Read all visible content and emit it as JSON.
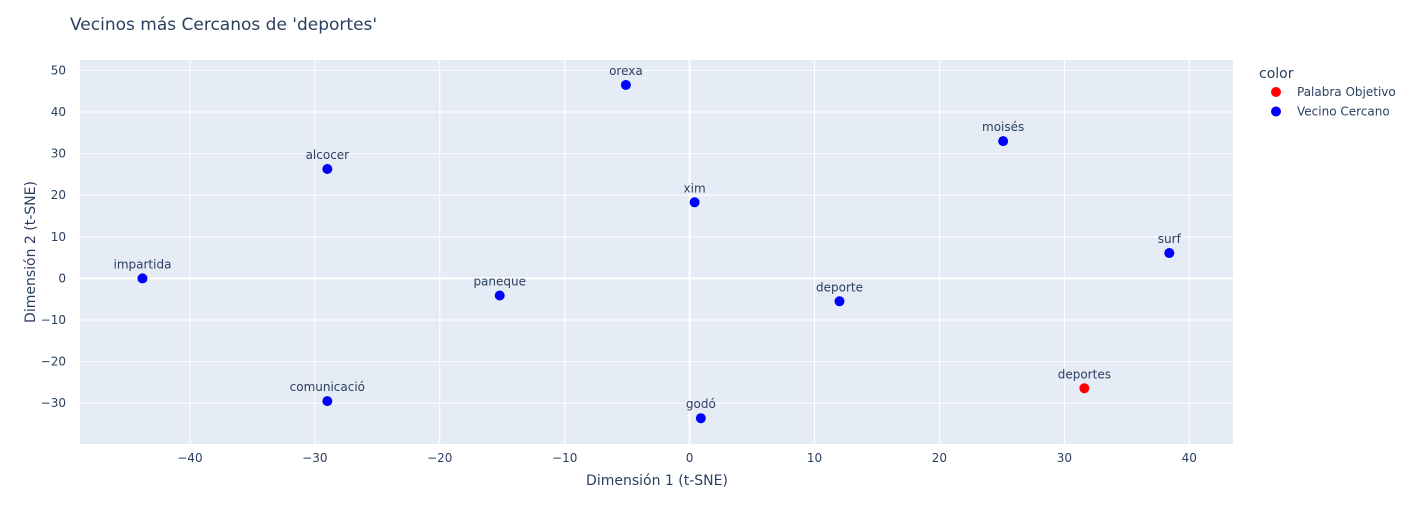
{
  "chart_data": {
    "type": "scatter",
    "title": "Vecinos más Cercanos de 'deportes'",
    "xlabel": "Dimensión 1 (t-SNE)",
    "ylabel": "Dimensión 2 (t-SNE)",
    "xlim": [
      -48.8,
      43.5
    ],
    "ylim": [
      -39.8,
      52.5
    ],
    "xticks": [
      -40,
      -30,
      -20,
      -10,
      0,
      10,
      20,
      30,
      40
    ],
    "yticks": [
      -30,
      -20,
      -10,
      0,
      10,
      20,
      30,
      40,
      50
    ],
    "tick_text": {
      "-40": "−40",
      "-30": "−30",
      "-20": "−20",
      "-10": "−10",
      "0": "0",
      "10": "10",
      "20": "20",
      "30": "30",
      "40": "40",
      "50": "50"
    },
    "grid": true,
    "legend": {
      "title": "color",
      "placement": "top-right",
      "entries": [
        {
          "label": "Palabra Objetivo",
          "color": "#ff0000"
        },
        {
          "label": "Vecino Cercano",
          "color": "#0000ff"
        }
      ]
    },
    "points": [
      {
        "label": "deportes",
        "x": 31.6,
        "y": -26.4,
        "group": "Palabra Objetivo"
      },
      {
        "label": "orexa",
        "x": -5.1,
        "y": 46.5,
        "group": "Vecino Cercano"
      },
      {
        "label": "moisés",
        "x": 25.1,
        "y": 33.0,
        "group": "Vecino Cercano"
      },
      {
        "label": "alcocer",
        "x": -29.0,
        "y": 26.3,
        "group": "Vecino Cercano"
      },
      {
        "label": "xim",
        "x": 0.4,
        "y": 18.3,
        "group": "Vecino Cercano"
      },
      {
        "label": "surf",
        "x": 38.4,
        "y": 6.1,
        "group": "Vecino Cercano"
      },
      {
        "label": "impartida",
        "x": -43.8,
        "y": 0.0,
        "group": "Vecino Cercano"
      },
      {
        "label": "paneque",
        "x": -15.2,
        "y": -4.1,
        "group": "Vecino Cercano"
      },
      {
        "label": "deporte",
        "x": 12.0,
        "y": -5.5,
        "group": "Vecino Cercano"
      },
      {
        "label": "comunicació",
        "x": -29.0,
        "y": -29.5,
        "group": "Vecino Cercano"
      },
      {
        "label": "godó",
        "x": 0.9,
        "y": -33.6,
        "group": "Vecino Cercano"
      }
    ],
    "colors": {
      "plot_bg": "#e5ecf6",
      "grid": "#ffffff",
      "text": "#2a3f5f"
    }
  }
}
